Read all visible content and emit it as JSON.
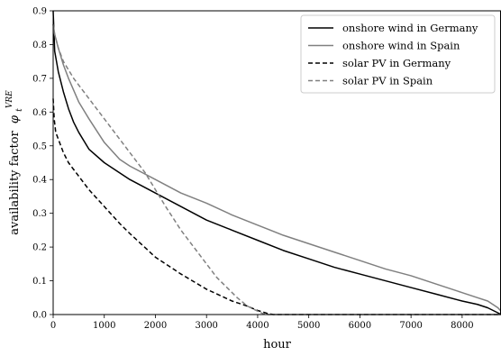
{
  "chart_data": {
    "type": "line",
    "title": "",
    "xlabel": "hour",
    "ylabel_text": "availability factor",
    "ylabel_symbol": "φ",
    "ylabel_sub": "t",
    "ylabel_sup": "VRE",
    "xlim": [
      0,
      8760
    ],
    "ylim": [
      0,
      0.9
    ],
    "xticks": [
      0,
      1000,
      2000,
      3000,
      4000,
      5000,
      6000,
      7000,
      8000
    ],
    "yticks": [
      0.0,
      0.1,
      0.2,
      0.3,
      0.4,
      0.5,
      0.6,
      0.7,
      0.8,
      0.9
    ],
    "grid": false,
    "legend_position": "top-right",
    "series": [
      {
        "name": "onshore wind in Germany",
        "color": "#000000",
        "dash": "solid",
        "x": [
          0,
          30,
          100,
          200,
          300,
          400,
          500,
          700,
          1000,
          1200,
          1500,
          2000,
          2500,
          3000,
          3500,
          4000,
          4500,
          5000,
          5500,
          6000,
          6500,
          7000,
          7500,
          8000,
          8300,
          8500,
          8700,
          8760
        ],
        "y": [
          0.9,
          0.78,
          0.72,
          0.66,
          0.61,
          0.57,
          0.54,
          0.49,
          0.45,
          0.43,
          0.4,
          0.36,
          0.32,
          0.28,
          0.25,
          0.22,
          0.19,
          0.165,
          0.14,
          0.12,
          0.1,
          0.08,
          0.06,
          0.04,
          0.03,
          0.02,
          0.005,
          0.0
        ]
      },
      {
        "name": "onshore wind in Spain",
        "color": "#808080",
        "dash": "solid",
        "x": [
          0,
          30,
          100,
          200,
          300,
          500,
          700,
          1000,
          1300,
          1500,
          2000,
          2500,
          3000,
          3500,
          4000,
          4500,
          5000,
          5500,
          6000,
          6500,
          7000,
          7500,
          8000,
          8300,
          8500,
          8700,
          8760
        ],
        "y": [
          0.86,
          0.83,
          0.79,
          0.74,
          0.7,
          0.63,
          0.58,
          0.51,
          0.46,
          0.44,
          0.4,
          0.36,
          0.33,
          0.295,
          0.265,
          0.235,
          0.21,
          0.185,
          0.16,
          0.135,
          0.115,
          0.09,
          0.065,
          0.05,
          0.04,
          0.02,
          0.01
        ]
      },
      {
        "name": "solar PV in Germany",
        "color": "#000000",
        "dash": "dashed",
        "x": [
          0,
          20,
          50,
          100,
          200,
          300,
          400,
          500,
          700,
          1000,
          1300,
          1500,
          2000,
          2500,
          3000,
          3500,
          3800,
          4000,
          4200,
          4300,
          8760
        ],
        "y": [
          0.64,
          0.58,
          0.54,
          0.52,
          0.48,
          0.45,
          0.43,
          0.41,
          0.37,
          0.32,
          0.27,
          0.24,
          0.17,
          0.12,
          0.075,
          0.04,
          0.025,
          0.012,
          0.003,
          0.0,
          0.0
        ]
      },
      {
        "name": "solar PV in Spain",
        "color": "#808080",
        "dash": "dashed",
        "x": [
          0,
          30,
          100,
          200,
          400,
          600,
          800,
          1000,
          1200,
          1500,
          1800,
          2000,
          2200,
          2500,
          2800,
          3000,
          3200,
          3400,
          3600,
          3800,
          4000,
          4100,
          4200,
          8760
        ],
        "y": [
          0.86,
          0.83,
          0.79,
          0.75,
          0.7,
          0.66,
          0.62,
          0.58,
          0.54,
          0.48,
          0.42,
          0.37,
          0.32,
          0.25,
          0.19,
          0.15,
          0.11,
          0.08,
          0.05,
          0.025,
          0.01,
          0.003,
          0.0,
          0.0
        ]
      }
    ]
  }
}
